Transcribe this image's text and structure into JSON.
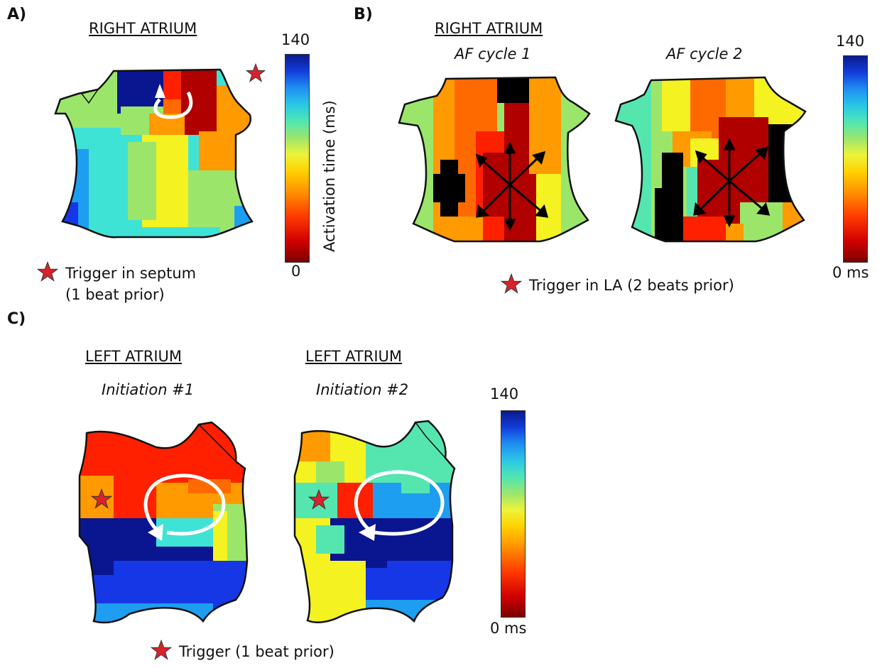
{
  "colors": {
    "dark_blue": "#0a1590",
    "blue": "#1637e6",
    "light_blue": "#1e9ef0",
    "cyan": "#3fe3d6",
    "teal": "#55e6b0",
    "light_green": "#9be66a",
    "yellow": "#f4f221",
    "orange": "#ff9a00",
    "dark_orange": "#ff6a00",
    "red": "#ff2000",
    "dark_red": "#b00000",
    "black": "#000000",
    "white": "#ffffff",
    "star": "#d8232a"
  },
  "panels": {
    "a": {
      "label": "A)",
      "region": "RIGHT ATRIUM",
      "colorbar": {
        "max": "140",
        "min": "0",
        "axis_label": "Activation time (ms)",
        "range": [
          0,
          140
        ]
      },
      "legend": {
        "line1": "Trigger in septum",
        "line2": "(1 beat prior)"
      }
    },
    "b": {
      "label": "B)",
      "region": "RIGHT ATRIUM",
      "maps": [
        {
          "title": "AF cycle 1"
        },
        {
          "title": "AF cycle 2"
        }
      ],
      "colorbar": {
        "max": "140",
        "min": "0 ms",
        "range": [
          0,
          140
        ]
      },
      "legend": {
        "line1": "Trigger in LA (2 beats prior)"
      }
    },
    "c": {
      "label": "C)",
      "maps": [
        {
          "region": "LEFT ATRIUM",
          "title": "Initiation #1"
        },
        {
          "region": "LEFT ATRIUM",
          "title": "Initiation #2"
        }
      ],
      "colorbar": {
        "max": "140",
        "min": "0 ms",
        "range": [
          0,
          140
        ]
      },
      "legend": {
        "line1": "Trigger (1 beat prior)"
      }
    }
  }
}
